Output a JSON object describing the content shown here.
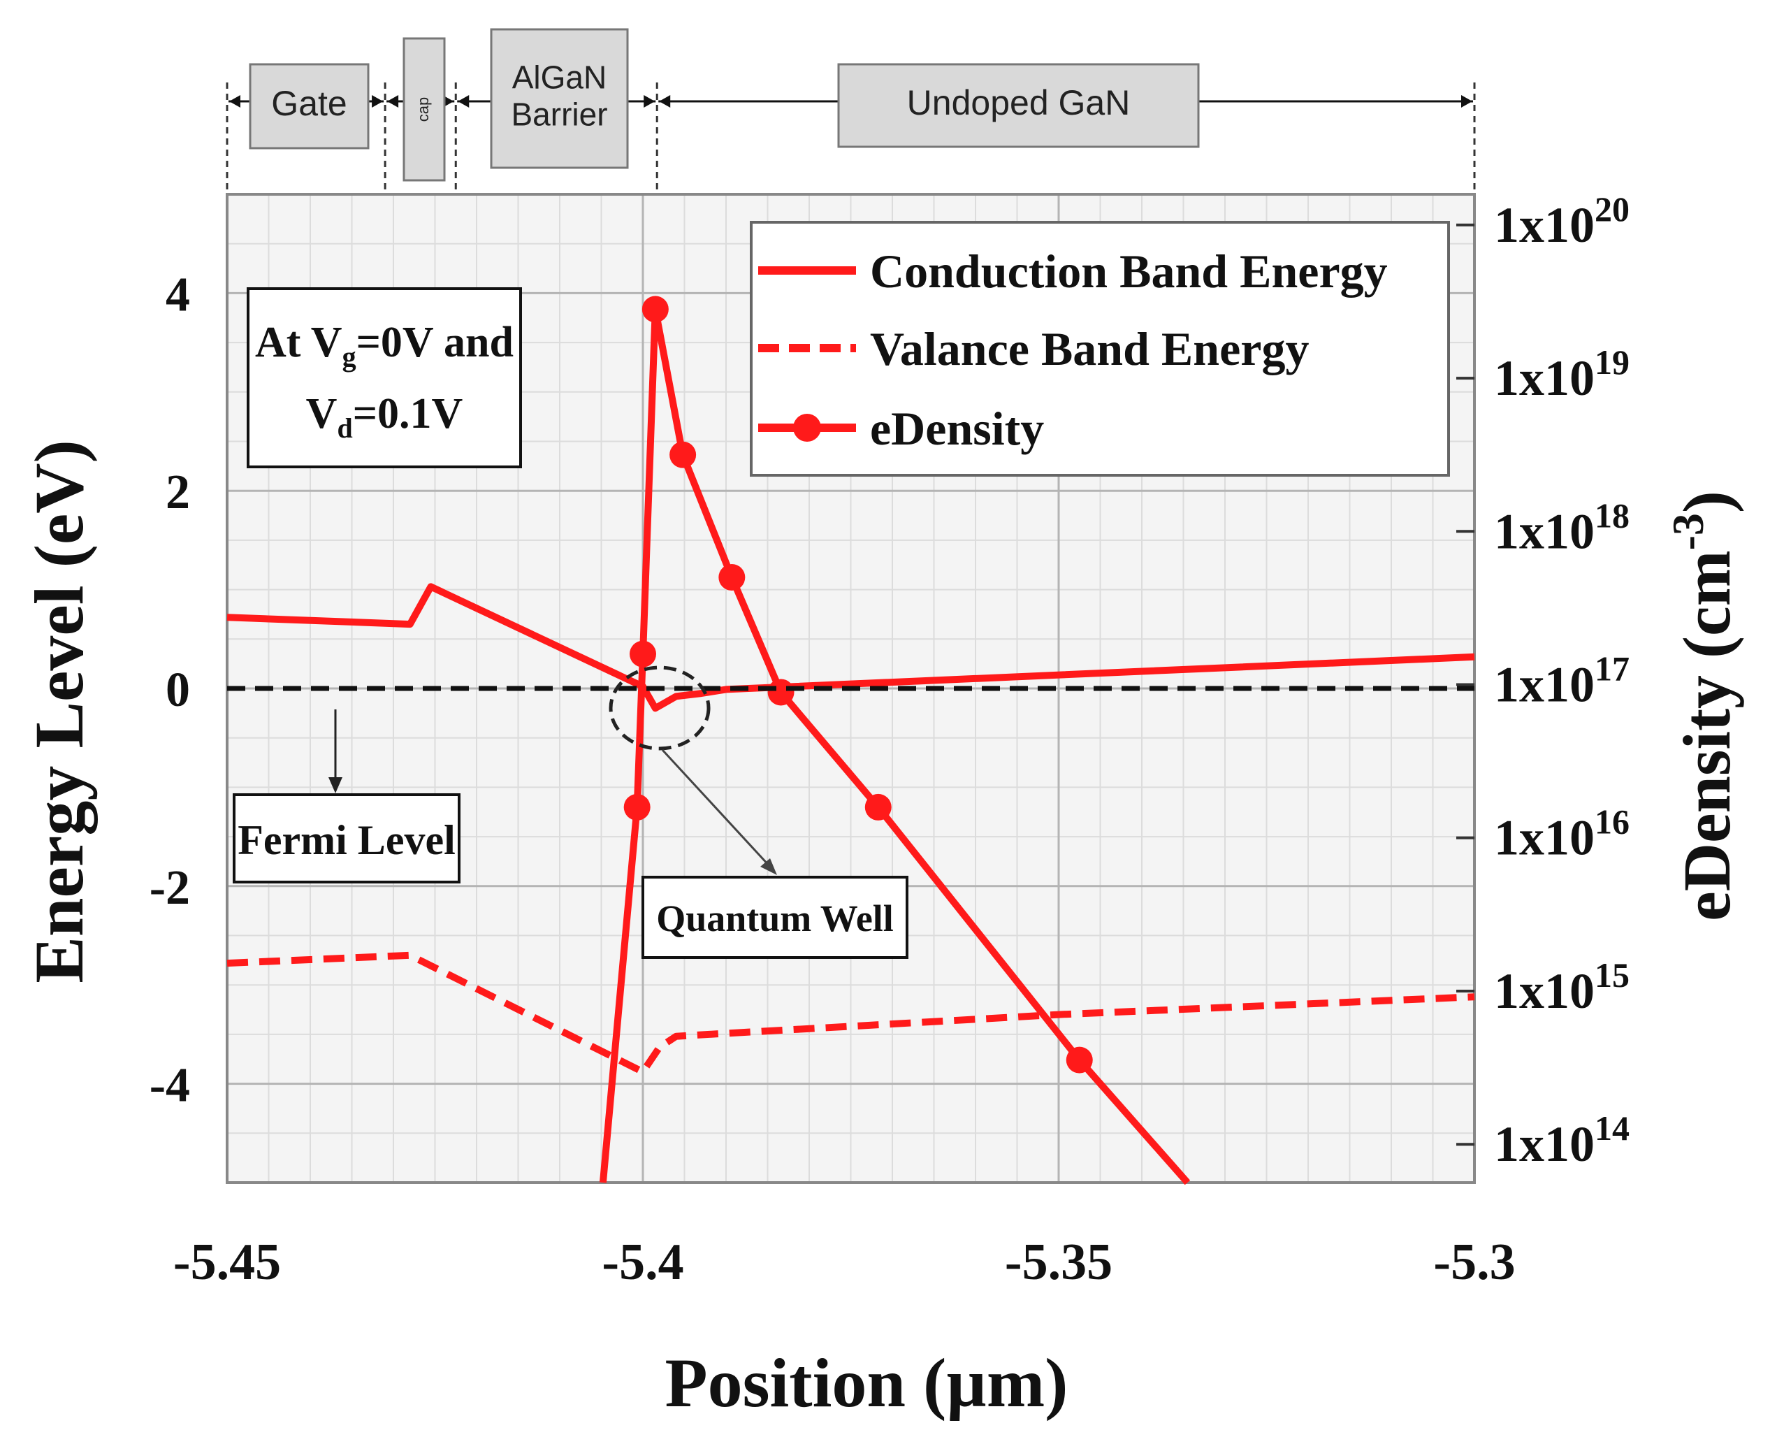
{
  "chart_data": {
    "type": "line",
    "xlabel": "Position (µm)",
    "ylabel_left": "Energy Level (eV)",
    "ylabel_right": {
      "base": "eDensity (cm",
      "sup": "-3",
      "end": ")"
    },
    "xlim": [
      -5.45,
      -5.3
    ],
    "ylim_left": [
      -5,
      5
    ],
    "ylim_right_log10": [
      13.75,
      20.2
    ],
    "x_ticks": [
      {
        "value": -5.45,
        "label": "-5.45"
      },
      {
        "value": -5.4,
        "label": "-5.4"
      },
      {
        "value": -5.35,
        "label": "-5.35"
      },
      {
        "value": -5.3,
        "label": "-5.3"
      }
    ],
    "y_left_ticks": [
      {
        "value": 4,
        "label": "4"
      },
      {
        "value": 2,
        "label": "2"
      },
      {
        "value": 0,
        "label": "0"
      },
      {
        "value": -2,
        "label": "-2"
      },
      {
        "value": -4,
        "label": "-4"
      }
    ],
    "y_right_ticks": [
      {
        "exp": 20,
        "base": "1x10",
        "sup": "20"
      },
      {
        "exp": 19,
        "base": "1x10",
        "sup": "19"
      },
      {
        "exp": 18,
        "base": "1x10",
        "sup": "18"
      },
      {
        "exp": 17,
        "base": "1x10",
        "sup": "17"
      },
      {
        "exp": 16,
        "base": "1x10",
        "sup": "16"
      },
      {
        "exp": 15,
        "base": "1x10",
        "sup": "15"
      },
      {
        "exp": 14,
        "base": "1x10",
        "sup": "14"
      }
    ],
    "series": [
      {
        "name": "Conduction Band Energy",
        "axis": "left",
        "style": "solid",
        "color": "#ff1a1a",
        "points": [
          [
            -5.45,
            0.72
          ],
          [
            -5.428,
            0.65
          ],
          [
            -5.4255,
            1.03
          ],
          [
            -5.4,
            0.02
          ],
          [
            -5.3985,
            -0.2
          ],
          [
            -5.396,
            -0.08
          ],
          [
            -5.393,
            -0.05
          ],
          [
            -5.39,
            -0.01
          ],
          [
            -5.3,
            0.32
          ]
        ]
      },
      {
        "name": "Valance Band Energy",
        "axis": "left",
        "style": "dashed",
        "color": "#ff1a1a",
        "points": [
          [
            -5.45,
            -2.78
          ],
          [
            -5.428,
            -2.7
          ],
          [
            -5.4,
            -3.88
          ],
          [
            -5.398,
            -3.63
          ],
          [
            -5.396,
            -3.52
          ],
          [
            -5.39,
            -3.49
          ],
          [
            -5.35,
            -3.3
          ],
          [
            -5.3,
            -3.12
          ]
        ]
      },
      {
        "name": "eDensity",
        "axis": "right",
        "scale": "log10",
        "style": "solid-markers",
        "color": "#ff1a1a",
        "points": [
          [
            -5.4048,
            13.75
          ],
          [
            -5.4007,
            16.2
          ],
          [
            -5.4,
            17.2
          ],
          [
            -5.3985,
            19.45
          ],
          [
            -5.3952,
            18.5
          ],
          [
            -5.3893,
            17.7
          ],
          [
            -5.3834,
            16.95
          ],
          [
            -5.3717,
            16.2
          ],
          [
            -5.3475,
            14.55
          ],
          [
            -5.3345,
            13.75
          ]
        ],
        "markers": [
          [
            -5.4007,
            16.2
          ],
          [
            -5.4,
            17.2
          ],
          [
            -5.3985,
            19.45
          ],
          [
            -5.3952,
            18.5
          ],
          [
            -5.3893,
            17.7
          ],
          [
            -5.3834,
            16.95
          ],
          [
            -5.3717,
            16.2
          ],
          [
            -5.3475,
            14.55
          ]
        ]
      }
    ],
    "fermi_level": {
      "value": 0,
      "label": "Fermi Level",
      "color": "#111111"
    },
    "legend": {
      "position": "top-right",
      "entries": [
        "Conduction Band Energy",
        "Valance Band Energy",
        "eDensity"
      ]
    },
    "annotations": {
      "conditions": {
        "line1_a": "At V",
        "line1_sub": "g",
        "line1_b": "=0V and",
        "line2_a": "V",
        "line2_sub": "d",
        "line2_b": "=0.1V"
      },
      "quantum_well": "Quantum Well"
    },
    "regions": [
      {
        "name": "gate",
        "label": "Gate",
        "lines": [
          "Gate"
        ],
        "x_range": [
          -5.45,
          -5.431
        ]
      },
      {
        "name": "cap",
        "label": "cap",
        "lines": [
          "cap"
        ],
        "x_range": [
          -5.431,
          -5.4225
        ]
      },
      {
        "name": "algan-barrier",
        "label": "AlGaN Barrier",
        "lines": [
          "AlGaN",
          "Barrier"
        ],
        "x_range": [
          -5.4225,
          -5.3983
        ]
      },
      {
        "name": "undoped-gan",
        "label": "Undoped GaN",
        "lines": [
          "Undoped GaN"
        ],
        "x_range": [
          -5.3983,
          -5.3
        ]
      }
    ]
  }
}
